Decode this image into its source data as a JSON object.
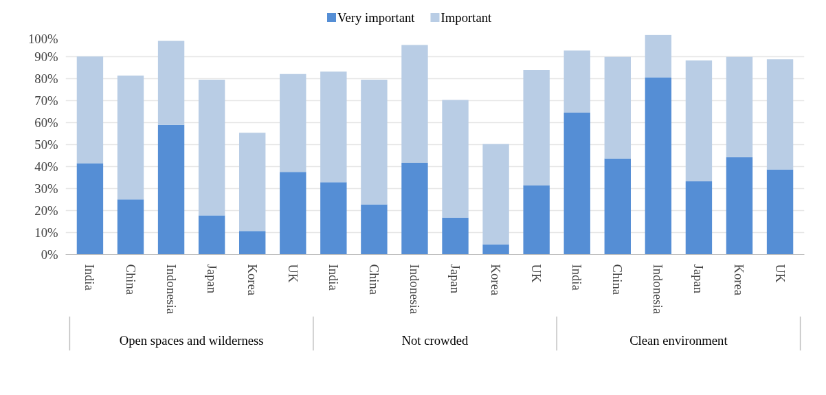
{
  "chart_data": {
    "type": "bar",
    "stacked": true,
    "categories": [
      "India",
      "China",
      "Indonesia",
      "Japan",
      "Korea",
      "UK",
      "India",
      "China",
      "Indonesia",
      "Japan",
      "Korea",
      "UK",
      "India",
      "China",
      "Indonesia",
      "Japan",
      "Korea",
      "UK"
    ],
    "series": [
      {
        "name": "Very important",
        "color": "#558ed5",
        "values": [
          41.5,
          25.1,
          59.0,
          17.8,
          10.7,
          37.6,
          32.9,
          22.8,
          41.7,
          16.8,
          4.6,
          31.5,
          64.5,
          43.7,
          80.6,
          33.3,
          44.3,
          38.7
        ]
      },
      {
        "name": "Important",
        "color": "#b9cde5",
        "values": [
          48.6,
          56.3,
          38.2,
          61.7,
          44.7,
          44.5,
          50.3,
          56.7,
          53.6,
          53.5,
          45.6,
          52.4,
          28.3,
          46.2,
          19.3,
          55.0,
          45.6,
          50.1
        ]
      }
    ],
    "annotations": [
      "Open spaces and wilderness",
      "Not crowded",
      "Clean environment"
    ],
    "ylim": [
      0,
      100
    ],
    "yticks": [
      {
        "value": 0,
        "label": "0%"
      },
      {
        "value": 10,
        "label": "10%"
      },
      {
        "value": 20,
        "label": "20%"
      },
      {
        "value": 30,
        "label": "30%"
      },
      {
        "value": 40,
        "label": "40%"
      },
      {
        "value": 50,
        "label": "50%"
      },
      {
        "value": 60,
        "label": "60%"
      },
      {
        "value": 70,
        "label": "70%"
      },
      {
        "value": 80,
        "label": "80%"
      },
      {
        "value": 90,
        "label": "90%"
      },
      {
        "value": 100,
        "label": "100%"
      }
    ],
    "grid": "y",
    "legend": "top"
  }
}
